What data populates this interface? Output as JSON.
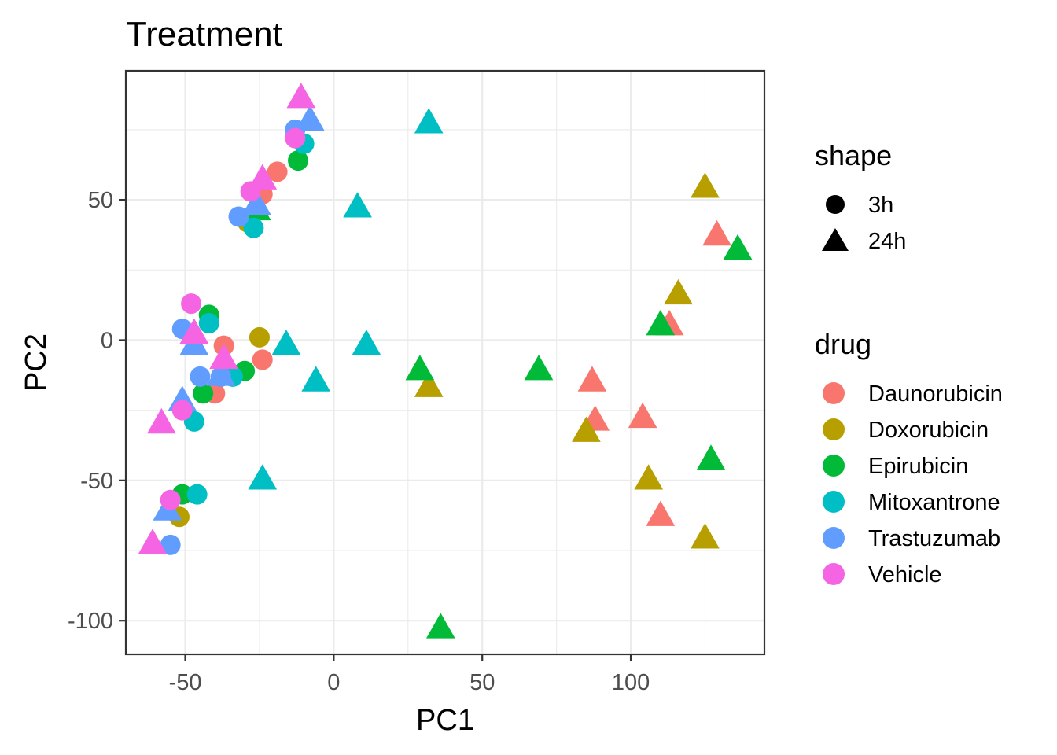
{
  "chart_data": {
    "type": "scatter",
    "title": "Treatment",
    "xlabel": "PC1",
    "ylabel": "PC2",
    "xlim": [
      -70,
      145
    ],
    "ylim": [
      -112,
      96
    ],
    "x_ticks": [
      -50,
      0,
      50,
      100
    ],
    "y_ticks": [
      -100,
      -50,
      0,
      50
    ],
    "x_tick_labels": [
      "-50",
      "0",
      "50",
      "100"
    ],
    "y_tick_labels": [
      "-100",
      "-50",
      "0",
      "50"
    ],
    "grid": true,
    "legend_placement": "right",
    "shape_legend": {
      "title": "shape",
      "entries": [
        {
          "label": "3h",
          "shape": "circle"
        },
        {
          "label": "24h",
          "shape": "triangle"
        }
      ]
    },
    "color_legend": {
      "title": "drug",
      "entries": [
        {
          "label": "Daunorubicin",
          "color": "#F8766D"
        },
        {
          "label": "Doxorubicin",
          "color": "#B79F00"
        },
        {
          "label": "Epirubicin",
          "color": "#00BA38"
        },
        {
          "label": "Mitoxantrone",
          "color": "#00BFC4"
        },
        {
          "label": "Trastuzumab",
          "color": "#619CFF"
        },
        {
          "label": "Vehicle",
          "color": "#F564E3"
        }
      ]
    },
    "series": [
      {
        "drug": "Daunorubicin",
        "color": "#F8766D",
        "points": [
          {
            "x": -19,
            "y": 60,
            "shape": "3h"
          },
          {
            "x": -24,
            "y": 52,
            "shape": "3h"
          },
          {
            "x": -37,
            "y": -2,
            "shape": "3h"
          },
          {
            "x": -24,
            "y": -7,
            "shape": "3h"
          },
          {
            "x": -40,
            "y": -19,
            "shape": "3h"
          },
          {
            "x": 129,
            "y": 38,
            "shape": "24h"
          },
          {
            "x": 113,
            "y": 6,
            "shape": "24h"
          },
          {
            "x": 87,
            "y": -14,
            "shape": "24h"
          },
          {
            "x": 88,
            "y": -28,
            "shape": "24h"
          },
          {
            "x": 104,
            "y": -27,
            "shape": "24h"
          },
          {
            "x": 110,
            "y": -62,
            "shape": "24h"
          }
        ]
      },
      {
        "drug": "Doxorubicin",
        "color": "#B79F00",
        "points": [
          {
            "x": -29,
            "y": 42,
            "shape": "3h"
          },
          {
            "x": -25,
            "y": 1,
            "shape": "3h"
          },
          {
            "x": -52,
            "y": -63,
            "shape": "3h"
          },
          {
            "x": 125,
            "y": 55,
            "shape": "24h"
          },
          {
            "x": 116,
            "y": 17,
            "shape": "24h"
          },
          {
            "x": 32,
            "y": -16,
            "shape": "24h"
          },
          {
            "x": 85,
            "y": -32,
            "shape": "24h"
          },
          {
            "x": 106,
            "y": -49,
            "shape": "24h"
          },
          {
            "x": 125,
            "y": -70,
            "shape": "24h"
          }
        ]
      },
      {
        "drug": "Epirubicin",
        "color": "#00BA38",
        "points": [
          {
            "x": -12,
            "y": 64,
            "shape": "3h"
          },
          {
            "x": -42,
            "y": 9,
            "shape": "3h"
          },
          {
            "x": -30,
            "y": -11,
            "shape": "3h"
          },
          {
            "x": -44,
            "y": -19,
            "shape": "3h"
          },
          {
            "x": -51,
            "y": -55,
            "shape": "3h"
          },
          {
            "x": -26,
            "y": 47,
            "shape": "24h"
          },
          {
            "x": 136,
            "y": 33,
            "shape": "24h"
          },
          {
            "x": 110,
            "y": 6,
            "shape": "24h"
          },
          {
            "x": 69,
            "y": -10,
            "shape": "24h"
          },
          {
            "x": 29,
            "y": -10,
            "shape": "24h"
          },
          {
            "x": 127,
            "y": -42,
            "shape": "24h"
          },
          {
            "x": 36,
            "y": -102,
            "shape": "24h"
          }
        ]
      },
      {
        "drug": "Mitoxantrone",
        "color": "#00BFC4",
        "points": [
          {
            "x": -10,
            "y": 70,
            "shape": "3h"
          },
          {
            "x": -27,
            "y": 40,
            "shape": "3h"
          },
          {
            "x": -42,
            "y": 6,
            "shape": "3h"
          },
          {
            "x": -34,
            "y": -13,
            "shape": "3h"
          },
          {
            "x": -47,
            "y": -29,
            "shape": "3h"
          },
          {
            "x": -46,
            "y": -55,
            "shape": "3h"
          },
          {
            "x": 32,
            "y": 78,
            "shape": "24h"
          },
          {
            "x": 8,
            "y": 48,
            "shape": "24h"
          },
          {
            "x": -16,
            "y": -1,
            "shape": "24h"
          },
          {
            "x": 11,
            "y": -1,
            "shape": "24h"
          },
          {
            "x": -6,
            "y": -14,
            "shape": "24h"
          },
          {
            "x": -24,
            "y": -49,
            "shape": "24h"
          }
        ]
      },
      {
        "drug": "Trastuzumab",
        "color": "#619CFF",
        "points": [
          {
            "x": -13,
            "y": 75,
            "shape": "3h"
          },
          {
            "x": -32,
            "y": 44,
            "shape": "3h"
          },
          {
            "x": -51,
            "y": 4,
            "shape": "3h"
          },
          {
            "x": -45,
            "y": -13,
            "shape": "3h"
          },
          {
            "x": -38,
            "y": -13,
            "shape": "3h"
          },
          {
            "x": -55,
            "y": -73,
            "shape": "3h"
          },
          {
            "x": -8,
            "y": 79,
            "shape": "24h"
          },
          {
            "x": -26,
            "y": 49,
            "shape": "24h"
          },
          {
            "x": -47,
            "y": -1,
            "shape": "24h"
          },
          {
            "x": -38,
            "y": -12,
            "shape": "24h"
          },
          {
            "x": -51,
            "y": -21,
            "shape": "24h"
          },
          {
            "x": -56,
            "y": -60,
            "shape": "24h"
          }
        ]
      },
      {
        "drug": "Vehicle",
        "color": "#F564E3",
        "points": [
          {
            "x": -13,
            "y": 72,
            "shape": "3h"
          },
          {
            "x": -28,
            "y": 53,
            "shape": "3h"
          },
          {
            "x": -48,
            "y": 13,
            "shape": "3h"
          },
          {
            "x": -51,
            "y": -25,
            "shape": "3h"
          },
          {
            "x": -55,
            "y": -57,
            "shape": "3h"
          },
          {
            "x": -11,
            "y": 87,
            "shape": "24h"
          },
          {
            "x": -24,
            "y": 58,
            "shape": "24h"
          },
          {
            "x": -47,
            "y": 3,
            "shape": "24h"
          },
          {
            "x": -37,
            "y": -6,
            "shape": "24h"
          },
          {
            "x": -58,
            "y": -29,
            "shape": "24h"
          },
          {
            "x": -61,
            "y": -72,
            "shape": "24h"
          }
        ]
      }
    ]
  }
}
